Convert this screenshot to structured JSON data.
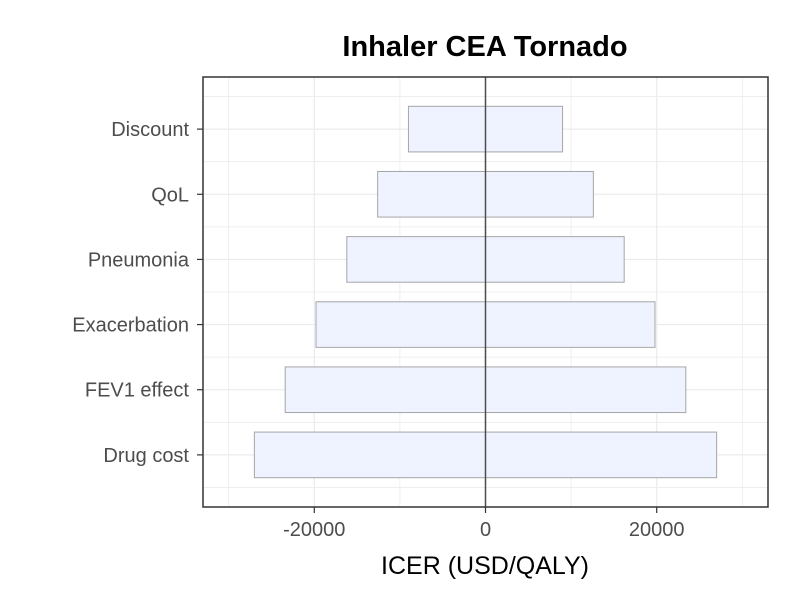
{
  "chart_data": {
    "type": "bar",
    "orientation": "horizontal",
    "title": "Inhaler CEA Tornado",
    "xlabel": "ICER (USD/QALY)",
    "ylabel": "",
    "xlim": [
      -33000,
      33000
    ],
    "x_ticks": [
      -20000,
      0,
      20000
    ],
    "x_tick_labels": [
      "-20000",
      "0",
      "20000"
    ],
    "reference_line": 0,
    "grid": true,
    "categories": [
      "Discount",
      "QoL",
      "Pneumonia",
      "Exacerbation",
      "FEV1 effect",
      "Drug cost"
    ],
    "bars": [
      {
        "category": "Discount",
        "low": -9000,
        "high": 9000
      },
      {
        "category": "QoL",
        "low": -12600,
        "high": 12600
      },
      {
        "category": "Pneumonia",
        "low": -16200,
        "high": 16200
      },
      {
        "category": "Exacerbation",
        "low": -19800,
        "high": 19800
      },
      {
        "category": "FEV1 effect",
        "low": -23400,
        "high": 23400
      },
      {
        "category": "Drug cost",
        "low": -27000,
        "high": 27000
      }
    ],
    "colors": {
      "bar_fill": "#eef3ff",
      "bar_stroke": "#a6a6a6",
      "zero_line": "#4d4d4d",
      "grid": "#ebebeb",
      "panel_border": "#333333"
    }
  }
}
